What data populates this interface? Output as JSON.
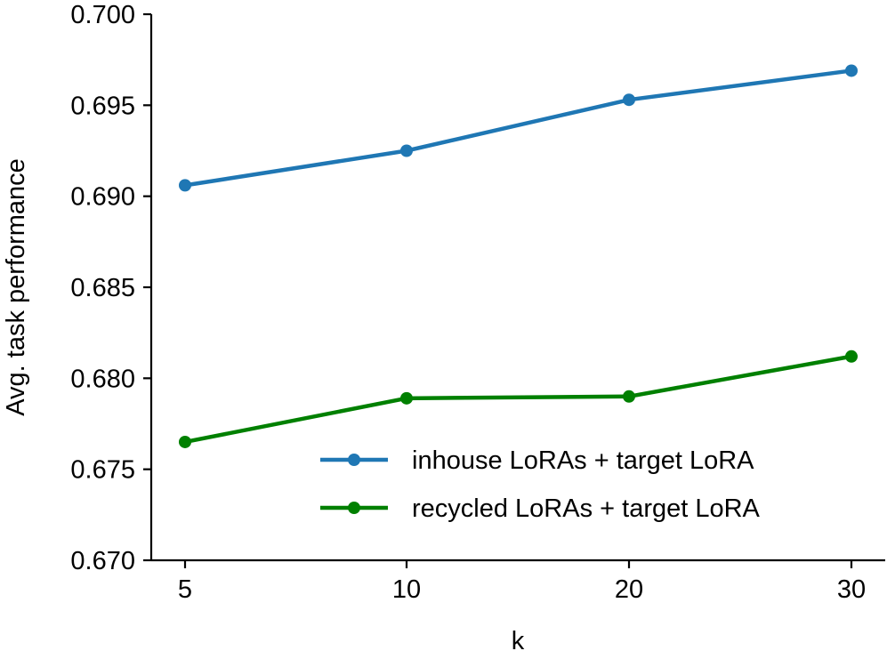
{
  "chart_data": {
    "type": "line",
    "title": "",
    "xlabel": "k",
    "ylabel": "Avg. task performance",
    "categories": [
      "5",
      "10",
      "20",
      "30"
    ],
    "ylim": [
      0.67,
      0.7
    ],
    "yticks": [
      "0.670",
      "0.675",
      "0.680",
      "0.685",
      "0.690",
      "0.695",
      "0.700"
    ],
    "grid": false,
    "legend_position": "lower-right",
    "series": [
      {
        "name": "inhouse LoRAs + target LoRA",
        "color": "#1f77b4",
        "values": [
          0.6906,
          0.6925,
          0.6953,
          0.6969
        ]
      },
      {
        "name": "recycled LoRAs + target LoRA",
        "color": "#008000",
        "values": [
          0.6765,
          0.6789,
          0.679,
          0.6812
        ]
      }
    ]
  }
}
